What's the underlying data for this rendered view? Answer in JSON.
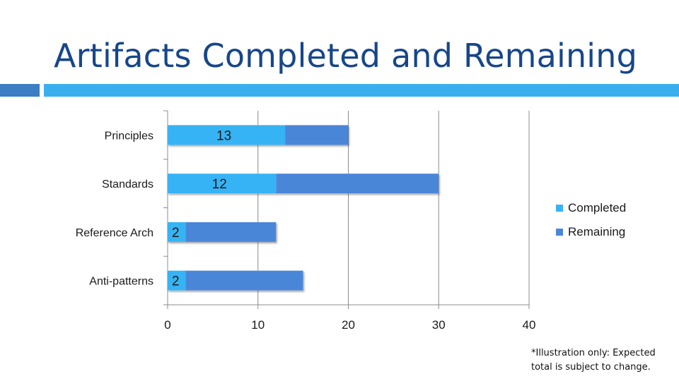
{
  "slide": {
    "title": "Artifacts Completed and Remaining",
    "footnote": "*Illustration only: Expected total is subject to change."
  },
  "colors": {
    "title": "#17468a",
    "accent_dark": "#3c7dc4",
    "accent_light": "#3aafef",
    "completed": "#36b3f5",
    "remaining": "#4a86d8",
    "grid": "#8c8c8c"
  },
  "chart_data": {
    "type": "bar",
    "orientation": "horizontal",
    "stacked": true,
    "categories": [
      "Principles",
      "Standards",
      "Reference Arch",
      "Anti-patterns"
    ],
    "series": [
      {
        "name": "Completed",
        "values": [
          13,
          12,
          2,
          2
        ],
        "data_labels": [
          "13",
          "12",
          "2",
          "2"
        ]
      },
      {
        "name": "Remaining",
        "values": [
          7,
          18,
          10,
          13
        ]
      }
    ],
    "xlim": [
      0,
      40
    ],
    "x_ticks": [
      "0",
      "10",
      "20",
      "30",
      "40"
    ],
    "grid": "vertical",
    "legend_position": "right"
  }
}
